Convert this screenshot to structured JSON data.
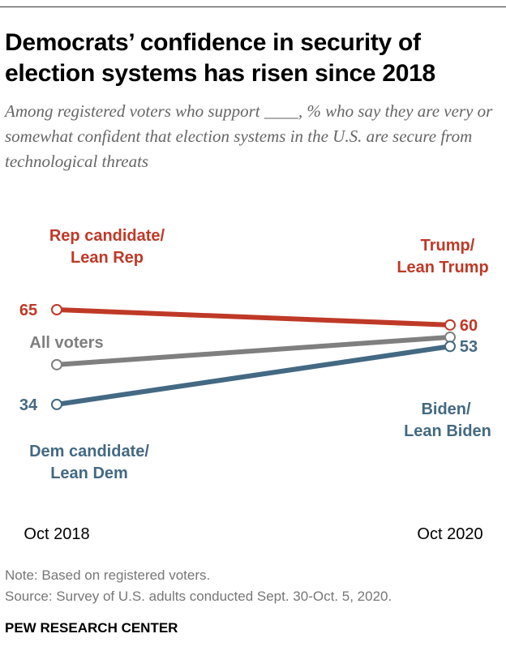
{
  "title": "Democrats’ confidence in security of election systems has risen since 2018",
  "subtitle": "Among registered voters who support ____, % who say they are very or somewhat confident that election systems in the U.S. are secure from technological threats",
  "chart_data": {
    "type": "line",
    "categories": [
      "Oct 2018",
      "Oct 2020"
    ],
    "series": [
      {
        "name": "Rep candidate/ Lean Rep",
        "name_end": "Trump/ Lean Trump",
        "values": [
          65,
          60
        ],
        "color": "#BF3927",
        "labels": [
          "65",
          "60"
        ]
      },
      {
        "name": "All voters",
        "values": [
          47,
          56
        ],
        "color": "#7F7F7F",
        "labels": [
          "",
          ""
        ]
      },
      {
        "name": "Dem candidate/ Lean Dem",
        "name_end": "Biden/ Lean Biden",
        "values": [
          34,
          53
        ],
        "color": "#436983",
        "labels": [
          "34",
          "53"
        ]
      }
    ],
    "grid": false,
    "legend": "direct labels"
  },
  "labels": {
    "rep_start": [
      "Rep candidate/",
      "Lean Rep"
    ],
    "rep_end": [
      "Trump/",
      "Lean Trump"
    ],
    "all": "All voters",
    "dem_start": [
      "Dem candidate/",
      "Lean Dem"
    ],
    "dem_end": [
      "Biden/",
      "Lean Biden"
    ]
  },
  "note": "Note: Based on registered voters.",
  "source": "Source: Survey of U.S. adults conducted Sept. 30-Oct. 5, 2020.",
  "brand": "PEW RESEARCH CENTER"
}
